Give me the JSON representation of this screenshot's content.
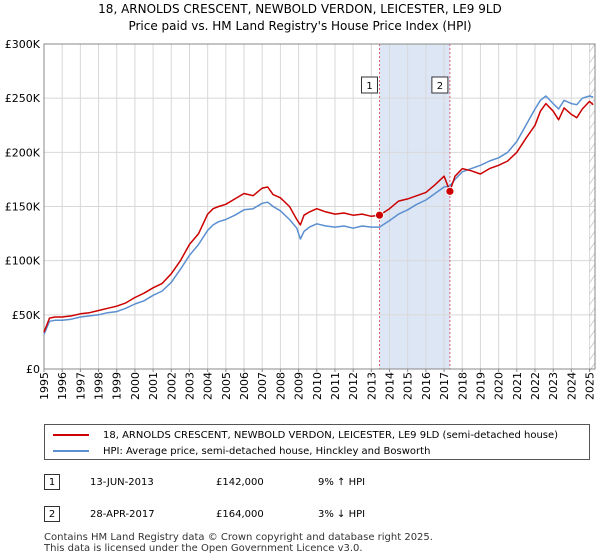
{
  "title_line1": "18, ARNOLDS CRESCENT, NEWBOLD VERDON, LEICESTER, LE9 9LD",
  "title_line2": "Price paid vs. HM Land Registry's House Price Index (HPI)",
  "colors": {
    "price": "#cc0000",
    "hpi": "#5b8fd0",
    "shade": "#dde6f5",
    "marker_line": "#e06070"
  },
  "legend": {
    "price_label": "18, ARNOLDS CRESCENT, NEWBOLD VERDON, LEICESTER, LE9 9LD (semi-detached house)",
    "hpi_label": "HPI: Average price, semi-detached house, Hinckley and Bosworth"
  },
  "events": [
    {
      "num": "1",
      "date": "13-JUN-2013",
      "price": "£142,000",
      "hpi": "9% ↑ HPI"
    },
    {
      "num": "2",
      "date": "28-APR-2017",
      "price": "£164,000",
      "hpi": "3% ↓ HPI"
    }
  ],
  "footer_line1": "Contains HM Land Registry data © Crown copyright and database right 2025.",
  "footer_line2": "This data is licensed under the Open Government Licence v3.0.",
  "chart_data": {
    "type": "line",
    "title": "Price paid vs. HM Land Registry's House Price Index (HPI)",
    "xlim": [
      1995,
      2025.3
    ],
    "ylim": [
      0,
      300000
    ],
    "x_ticks": [
      1995,
      1996,
      1997,
      1998,
      1999,
      2000,
      2001,
      2002,
      2003,
      2004,
      2005,
      2006,
      2007,
      2008,
      2009,
      2010,
      2011,
      2012,
      2013,
      2014,
      2015,
      2016,
      2017,
      2018,
      2019,
      2020,
      2021,
      2022,
      2023,
      2024,
      2025
    ],
    "y_ticks": [
      {
        "value": 0,
        "label": "£0"
      },
      {
        "value": 50000,
        "label": "£50K"
      },
      {
        "value": 100000,
        "label": "£100K"
      },
      {
        "value": 150000,
        "label": "£150K"
      },
      {
        "value": 200000,
        "label": "£200K"
      },
      {
        "value": 250000,
        "label": "£250K"
      },
      {
        "value": 300000,
        "label": "£300K"
      }
    ],
    "shaded_range": [
      2013.45,
      2017.32
    ],
    "sales": [
      {
        "label": "1",
        "x": 2013.45,
        "y": 142000
      },
      {
        "label": "2",
        "x": 2017.32,
        "y": 164000
      }
    ],
    "series": [
      {
        "name": "18, ARNOLDS CRESCENT, NEWBOLD VERDON, LEICESTER, LE9 9LD (semi-detached house)",
        "x": [
          1995.0,
          1995.3,
          1995.6,
          1996.0,
          1996.5,
          1997.0,
          1997.5,
          1998.0,
          1998.5,
          1999.0,
          1999.5,
          2000.0,
          2000.5,
          2001.0,
          2001.5,
          2002.0,
          2002.5,
          2003.0,
          2003.5,
          2004.0,
          2004.3,
          2004.6,
          2005.0,
          2005.5,
          2006.0,
          2006.5,
          2007.0,
          2007.3,
          2007.6,
          2008.0,
          2008.5,
          2008.9,
          2009.1,
          2009.3,
          2009.6,
          2010.0,
          2010.5,
          2011.0,
          2011.5,
          2012.0,
          2012.5,
          2013.0,
          2013.45,
          2014.0,
          2014.5,
          2015.0,
          2015.5,
          2016.0,
          2016.5,
          2017.0,
          2017.32,
          2017.6,
          2018.0,
          2018.5,
          2019.0,
          2019.5,
          2020.0,
          2020.5,
          2021.0,
          2021.5,
          2022.0,
          2022.3,
          2022.6,
          2023.0,
          2023.3,
          2023.6,
          2024.0,
          2024.3,
          2024.6,
          2025.0,
          2025.2
        ],
        "y": [
          34000,
          47000,
          48000,
          48000,
          49000,
          51000,
          52000,
          54000,
          56000,
          58000,
          61000,
          66000,
          70000,
          75000,
          79000,
          88000,
          100000,
          115000,
          125000,
          143000,
          148000,
          150000,
          152000,
          157000,
          162000,
          160000,
          167000,
          168000,
          161000,
          158000,
          150000,
          138000,
          133000,
          142000,
          145000,
          148000,
          145000,
          143000,
          144000,
          142000,
          143000,
          141000,
          142000,
          148000,
          155000,
          157000,
          160000,
          163000,
          170000,
          178000,
          164000,
          178000,
          185000,
          183000,
          180000,
          185000,
          188000,
          192000,
          200000,
          213000,
          225000,
          238000,
          245000,
          238000,
          230000,
          241000,
          235000,
          232000,
          240000,
          247000,
          244000
        ]
      },
      {
        "name": "HPI: Average price, semi-detached house, Hinckley and Bosworth",
        "x": [
          1995.0,
          1995.3,
          1995.6,
          1996.0,
          1996.5,
          1997.0,
          1997.5,
          1998.0,
          1998.5,
          1999.0,
          1999.5,
          2000.0,
          2000.5,
          2001.0,
          2001.5,
          2002.0,
          2002.5,
          2003.0,
          2003.5,
          2004.0,
          2004.3,
          2004.6,
          2005.0,
          2005.5,
          2006.0,
          2006.5,
          2007.0,
          2007.3,
          2007.6,
          2008.0,
          2008.5,
          2008.9,
          2009.1,
          2009.3,
          2009.6,
          2010.0,
          2010.5,
          2011.0,
          2011.5,
          2012.0,
          2012.5,
          2013.0,
          2013.45,
          2014.0,
          2014.5,
          2015.0,
          2015.5,
          2016.0,
          2016.5,
          2017.0,
          2017.32,
          2017.6,
          2018.0,
          2018.5,
          2019.0,
          2019.5,
          2020.0,
          2020.5,
          2021.0,
          2021.5,
          2022.0,
          2022.3,
          2022.6,
          2023.0,
          2023.3,
          2023.6,
          2024.0,
          2024.3,
          2024.6,
          2025.0,
          2025.2
        ],
        "y": [
          32000,
          44000,
          45000,
          45000,
          46000,
          48000,
          49000,
          50000,
          52000,
          53000,
          56000,
          60000,
          63000,
          68000,
          72000,
          80000,
          92000,
          105000,
          115000,
          128000,
          133000,
          136000,
          138000,
          142000,
          147000,
          148000,
          153000,
          154000,
          150000,
          146000,
          138000,
          130000,
          120000,
          127000,
          131000,
          134000,
          132000,
          131000,
          132000,
          130000,
          132000,
          131000,
          131000,
          137000,
          143000,
          147000,
          152000,
          156000,
          162000,
          168000,
          169000,
          175000,
          182000,
          185000,
          188000,
          192000,
          195000,
          200000,
          210000,
          225000,
          240000,
          248000,
          252000,
          245000,
          240000,
          248000,
          245000,
          244000,
          250000,
          252000,
          251000
        ]
      }
    ]
  }
}
